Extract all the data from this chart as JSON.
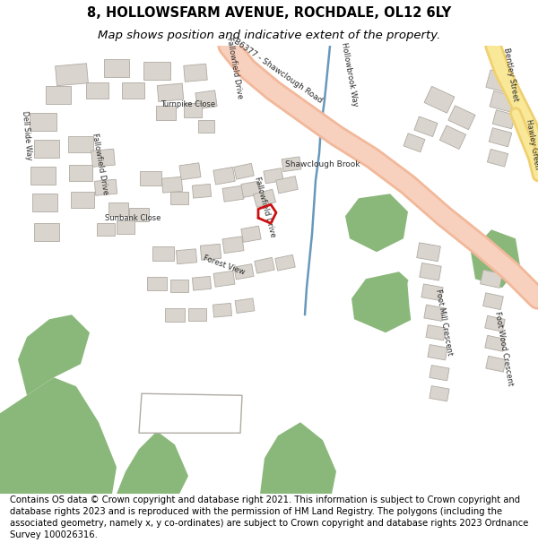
{
  "title_line1": "8, HOLLOWSFARM AVENUE, ROCHDALE, OL12 6LY",
  "title_line2": "Map shows position and indicative extent of the property.",
  "footer_text": "Contains OS data © Crown copyright and database right 2021. This information is subject to Crown copyright and database rights 2023 and is reproduced with the permission of HM Land Registry. The polygons (including the associated geometry, namely x, y co-ordinates) are subject to Crown copyright and database rights 2023 Ordnance Survey 100026316.",
  "title_fontsize": 10.5,
  "title2_fontsize": 9.5,
  "footer_fontsize": 7.2,
  "bg_color": "#ffffff",
  "map_bg": "#f0ede8",
  "road_main_color": "#f2b89a",
  "road_secondary_color": "#f0d070",
  "green_color": "#8ab87a",
  "building_color": "#d9d5ce",
  "building_outline": "#b0aba3",
  "plot_color": "#cc1111",
  "water_color": "#9bbdd4",
  "road_white_color": "#ffffff",
  "map_street_color": "#c8c4bc"
}
